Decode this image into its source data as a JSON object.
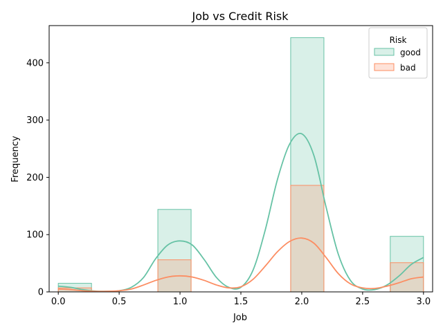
{
  "chart_data": {
    "type": "histogram",
    "title": "Job vs Credit Risk",
    "xlabel": "Job",
    "ylabel": "Frequency",
    "xlim": [
      -0.075,
      3.075
    ],
    "ylim": [
      0,
      465
    ],
    "xticks": [
      0.0,
      0.5,
      1.0,
      1.5,
      2.0,
      2.5,
      3.0
    ],
    "xtick_labels": [
      "0.0",
      "0.5",
      "1.0",
      "1.5",
      "2.0",
      "2.5",
      "3.0"
    ],
    "yticks": [
      0,
      100,
      200,
      300,
      400
    ],
    "ytick_labels": [
      "0",
      "100",
      "200",
      "300",
      "400"
    ],
    "grid": false,
    "legend": {
      "title": "Risk",
      "placement": "top-right"
    },
    "bins": [
      {
        "x0": 0.0,
        "x1": 0.273
      },
      {
        "x0": 0.818,
        "x1": 1.091
      },
      {
        "x0": 1.909,
        "x1": 2.182
      },
      {
        "x0": 2.727,
        "x1": 3.0
      }
    ],
    "series": [
      {
        "name": "good",
        "color": "#66c2a5",
        "fill": "#66c2a5",
        "fill_opacity": 0.25,
        "counts": [
          15,
          144,
          444,
          97
        ],
        "kde": [
          [
            0.0,
            10
          ],
          [
            0.1,
            8
          ],
          [
            0.2,
            4
          ],
          [
            0.3,
            1.5
          ],
          [
            0.4,
            1
          ],
          [
            0.5,
            2
          ],
          [
            0.6,
            8
          ],
          [
            0.7,
            25
          ],
          [
            0.8,
            58
          ],
          [
            0.9,
            82
          ],
          [
            1.0,
            89
          ],
          [
            1.1,
            82
          ],
          [
            1.2,
            56
          ],
          [
            1.3,
            25
          ],
          [
            1.4,
            8
          ],
          [
            1.5,
            8
          ],
          [
            1.6,
            38
          ],
          [
            1.7,
            108
          ],
          [
            1.8,
            196
          ],
          [
            1.9,
            258
          ],
          [
            2.0,
            276
          ],
          [
            2.1,
            238
          ],
          [
            2.2,
            148
          ],
          [
            2.3,
            66
          ],
          [
            2.4,
            20
          ],
          [
            2.5,
            5
          ],
          [
            2.6,
            4
          ],
          [
            2.7,
            12
          ],
          [
            2.8,
            28
          ],
          [
            2.9,
            48
          ],
          [
            3.0,
            60
          ]
        ]
      },
      {
        "name": "bad",
        "color": "#fc8d62",
        "fill": "#fc8d62",
        "fill_opacity": 0.25,
        "counts": [
          7,
          56,
          186,
          51
        ],
        "kde": [
          [
            0.0,
            5
          ],
          [
            0.1,
            4
          ],
          [
            0.2,
            2
          ],
          [
            0.3,
            1
          ],
          [
            0.4,
            1
          ],
          [
            0.5,
            2
          ],
          [
            0.6,
            5
          ],
          [
            0.7,
            12
          ],
          [
            0.8,
            20
          ],
          [
            0.9,
            26
          ],
          [
            1.0,
            28
          ],
          [
            1.1,
            26
          ],
          [
            1.2,
            20
          ],
          [
            1.3,
            12
          ],
          [
            1.4,
            7
          ],
          [
            1.5,
            9
          ],
          [
            1.6,
            22
          ],
          [
            1.7,
            45
          ],
          [
            1.8,
            70
          ],
          [
            1.9,
            88
          ],
          [
            2.0,
            94
          ],
          [
            2.1,
            85
          ],
          [
            2.2,
            60
          ],
          [
            2.3,
            32
          ],
          [
            2.4,
            14
          ],
          [
            2.5,
            7
          ],
          [
            2.6,
            6
          ],
          [
            2.7,
            10
          ],
          [
            2.8,
            16
          ],
          [
            2.9,
            23
          ],
          [
            3.0,
            26
          ]
        ]
      }
    ]
  }
}
